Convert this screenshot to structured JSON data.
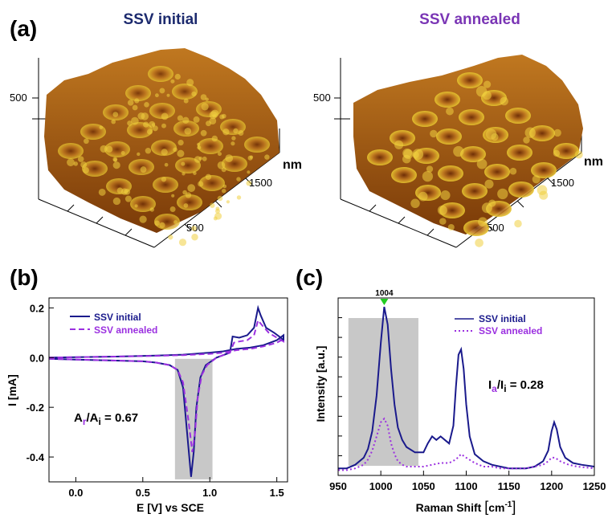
{
  "panels": {
    "a": {
      "label": "(a)"
    },
    "b": {
      "label": "(b)"
    },
    "c": {
      "label": "(c)"
    }
  },
  "afm": [
    {
      "title": "SSV initial",
      "title_color": "#1c2a6e",
      "z_tick": "500",
      "axis_unit": "nm",
      "tick_far": "1500",
      "tick_near": "500"
    },
    {
      "title": "SSV annealed",
      "title_color": "#7a35b5",
      "z_tick": "500",
      "axis_unit": "nm",
      "tick_far": "1500",
      "tick_near": "500"
    }
  ],
  "colors": {
    "initial": "#1a1a8c",
    "annealed": "#9b30e0",
    "shade": "#c8c8c8",
    "peak_marker": "#22cc22",
    "afm_dark": "#6b2a05",
    "afm_mid": "#c07820",
    "afm_light": "#e8c830"
  },
  "chart_data": [
    {
      "panel": "b",
      "type": "line",
      "xlabel": "E [V] vs SCE",
      "ylabel": "I [mA]",
      "xlim": [
        -0.2,
        1.58
      ],
      "ylim": [
        -0.5,
        0.24
      ],
      "xticks": [
        "0.0",
        "0.5",
        "1.0",
        "1.5"
      ],
      "xtick_values": [
        0.0,
        0.5,
        1.0,
        1.5
      ],
      "yticks": [
        "0.2",
        "0.0",
        "-0.2",
        "-0.4"
      ],
      "ytick_values": [
        0.2,
        0.0,
        -0.2,
        -0.4
      ],
      "legend": [
        "SSV initial",
        "SSV annealed"
      ],
      "shaded_region": [
        0.74,
        1.02
      ],
      "annotation": {
        "A": "A",
        "sub_a": "r",
        "slash": "/A",
        "sub_b": "i",
        "value": " = 0.67"
      },
      "series": [
        {
          "name": "SSV initial",
          "style": "solid",
          "x": [
            -0.2,
            0.0,
            0.3,
            0.5,
            0.6,
            0.7,
            0.76,
            0.8,
            0.83,
            0.86,
            0.88,
            0.9,
            0.93,
            0.97,
            1.05,
            1.15,
            1.17,
            1.22,
            1.28,
            1.33,
            1.36,
            1.38,
            1.42,
            1.48,
            1.53,
            1.55,
            1.55,
            1.5,
            1.4,
            1.3,
            1.2,
            1.1,
            1.0,
            0.8,
            0.6,
            0.3,
            0.0,
            -0.2
          ],
          "y": [
            -0.005,
            -0.008,
            -0.012,
            -0.015,
            -0.02,
            -0.03,
            -0.05,
            -0.12,
            -0.3,
            -0.48,
            -0.38,
            -0.2,
            -0.08,
            -0.03,
            0.0,
            0.02,
            0.085,
            0.08,
            0.09,
            0.12,
            0.2,
            0.17,
            0.12,
            0.1,
            0.08,
            0.07,
            0.09,
            0.07,
            0.05,
            0.04,
            0.035,
            0.025,
            0.02,
            0.012,
            0.008,
            0.004,
            0.002,
            0.0
          ]
        },
        {
          "name": "SSV annealed",
          "style": "dashed",
          "x": [
            -0.2,
            0.0,
            0.3,
            0.5,
            0.6,
            0.7,
            0.76,
            0.8,
            0.84,
            0.87,
            0.89,
            0.91,
            0.94,
            0.98,
            1.05,
            1.15,
            1.18,
            1.22,
            1.28,
            1.33,
            1.36,
            1.39,
            1.44,
            1.5,
            1.55,
            1.55,
            1.5,
            1.4,
            1.3,
            1.2,
            1.1,
            1.0,
            0.8,
            0.6,
            0.3,
            0.0,
            -0.2
          ],
          "y": [
            -0.005,
            -0.008,
            -0.012,
            -0.015,
            -0.02,
            -0.03,
            -0.05,
            -0.1,
            -0.25,
            -0.38,
            -0.3,
            -0.16,
            -0.07,
            -0.03,
            0.0,
            0.02,
            0.06,
            0.065,
            0.07,
            0.09,
            0.15,
            0.13,
            0.1,
            0.08,
            0.065,
            0.075,
            0.06,
            0.045,
            0.035,
            0.03,
            0.02,
            0.015,
            0.01,
            0.007,
            0.004,
            0.002,
            0.0
          ]
        }
      ]
    },
    {
      "panel": "c",
      "type": "line",
      "xlabel": "Raman Shift ",
      "xlabel_unit": "cm",
      "xlabel_exp": "-1",
      "ylabel": "Intensity [a.u.]",
      "xlim": [
        950,
        1250
      ],
      "ylim": [
        0,
        1
      ],
      "xticks": [
        "950",
        "1000",
        "1050",
        "1100",
        "1150",
        "1200",
        "1250"
      ],
      "xtick_values": [
        950,
        1000,
        1050,
        1100,
        1150,
        1200,
        1250
      ],
      "legend": [
        "SSV initial",
        "SSV annealed"
      ],
      "shaded_region": [
        962,
        1044
      ],
      "peak_label": "1004",
      "peak_x": 1004,
      "annotation": {
        "A": "I",
        "sub_a": "a",
        "slash": "/I",
        "sub_b": "i",
        "value": " = 0.28"
      },
      "series": [
        {
          "name": "SSV initial",
          "style": "solid",
          "x": [
            950,
            960,
            970,
            980,
            985,
            990,
            995,
            1000,
            1004,
            1008,
            1012,
            1016,
            1020,
            1025,
            1030,
            1040,
            1050,
            1055,
            1060,
            1065,
            1070,
            1075,
            1080,
            1085,
            1088,
            1091,
            1094,
            1097,
            1100,
            1104,
            1110,
            1120,
            1130,
            1140,
            1150,
            1160,
            1170,
            1180,
            1190,
            1196,
            1200,
            1203,
            1206,
            1210,
            1216,
            1225,
            1235,
            1250
          ],
          "y": [
            0.04,
            0.04,
            0.06,
            0.1,
            0.15,
            0.25,
            0.45,
            0.75,
            0.95,
            0.85,
            0.6,
            0.4,
            0.27,
            0.2,
            0.16,
            0.13,
            0.13,
            0.18,
            0.22,
            0.2,
            0.22,
            0.2,
            0.18,
            0.28,
            0.5,
            0.68,
            0.71,
            0.6,
            0.4,
            0.22,
            0.12,
            0.08,
            0.06,
            0.05,
            0.04,
            0.04,
            0.04,
            0.05,
            0.08,
            0.14,
            0.25,
            0.3,
            0.26,
            0.16,
            0.1,
            0.07,
            0.06,
            0.05
          ]
        },
        {
          "name": "SSV annealed",
          "style": "dotted",
          "x": [
            950,
            960,
            970,
            980,
            985,
            990,
            995,
            1000,
            1004,
            1008,
            1012,
            1016,
            1020,
            1025,
            1030,
            1040,
            1050,
            1060,
            1070,
            1080,
            1088,
            1094,
            1100,
            1110,
            1120,
            1130,
            1140,
            1150,
            1160,
            1170,
            1180,
            1190,
            1196,
            1200,
            1204,
            1210,
            1220,
            1230,
            1250
          ],
          "y": [
            0.03,
            0.03,
            0.04,
            0.06,
            0.09,
            0.14,
            0.22,
            0.3,
            0.32,
            0.28,
            0.18,
            0.12,
            0.08,
            0.06,
            0.05,
            0.05,
            0.05,
            0.06,
            0.07,
            0.07,
            0.09,
            0.12,
            0.1,
            0.07,
            0.05,
            0.05,
            0.04,
            0.04,
            0.04,
            0.04,
            0.05,
            0.06,
            0.08,
            0.1,
            0.1,
            0.08,
            0.06,
            0.05,
            0.04
          ]
        }
      ]
    }
  ]
}
